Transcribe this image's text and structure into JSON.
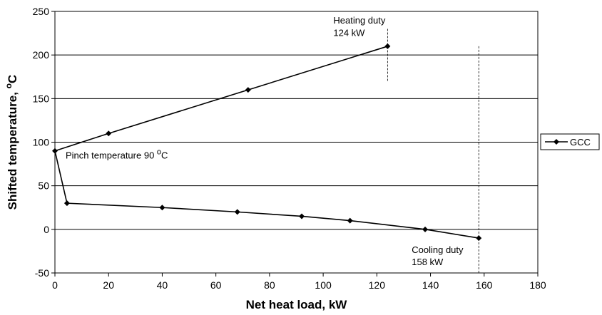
{
  "chart_data": {
    "type": "line",
    "title": "",
    "xlabel": "Net heat load, kW",
    "ylabel_main": "Shifted temperature, ",
    "ylabel_unit": "C",
    "ylabel_unit_super": "o",
    "xlim": [
      0,
      180
    ],
    "ylim": [
      -50,
      250
    ],
    "xticks": [
      0,
      20,
      40,
      60,
      80,
      100,
      120,
      140,
      160,
      180
    ],
    "yticks": [
      -50,
      0,
      50,
      100,
      150,
      200,
      250
    ],
    "grid": "horizontal",
    "legend_position": "right",
    "series": [
      {
        "name": "GCC",
        "color": "#000000",
        "marker": "diamond",
        "x": [
          124,
          72,
          20,
          0,
          4.5,
          40,
          68,
          92,
          110,
          138,
          158
        ],
        "y": [
          210,
          160,
          110,
          90,
          30,
          25,
          20,
          15,
          10,
          0,
          -10
        ]
      }
    ],
    "annotations": {
      "heating_line1": "Heating duty",
      "heating_line2": "124 kW",
      "heating_x": 124,
      "heating_y_range": [
        170,
        230
      ],
      "cooling_line1": "Cooling duty",
      "cooling_line2": "158 kW",
      "cooling_x": 158,
      "cooling_y_range": [
        -50,
        210
      ],
      "pinch_main": "Pinch temperature 90 ",
      "pinch_super": "o",
      "pinch_unit": "C"
    }
  }
}
